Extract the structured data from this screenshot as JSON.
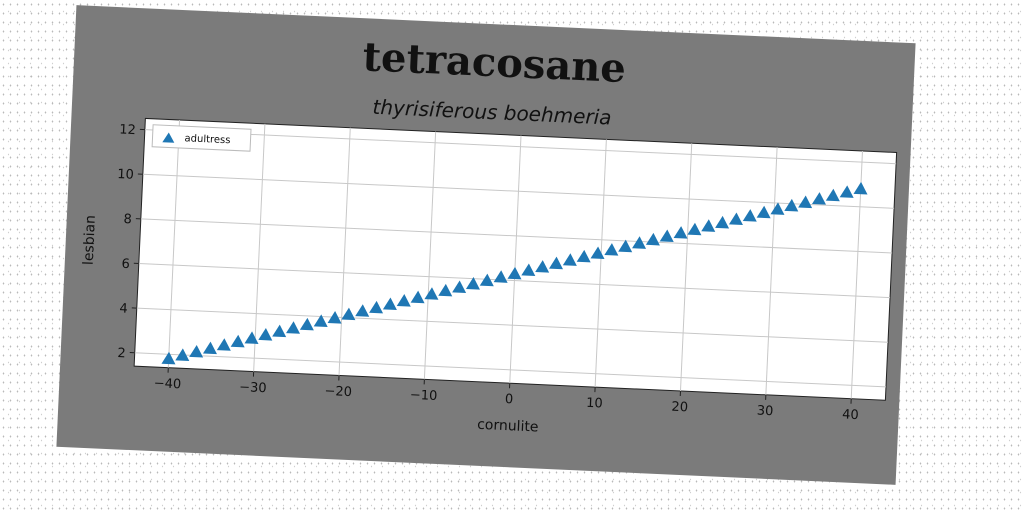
{
  "chart_data": {
    "type": "scatter",
    "title": "tetracosane",
    "subtitle": "thyrisiferous boehmeria",
    "xlabel": "cornulite",
    "ylabel": "lesbian",
    "xlim": [
      -44,
      44
    ],
    "ylim": [
      1.4,
      12.5
    ],
    "xticks": [
      -40,
      -30,
      -20,
      -10,
      0,
      10,
      20,
      30,
      40
    ],
    "yticks": [
      2,
      4,
      6,
      8,
      10,
      12
    ],
    "grid": true,
    "legend_position": "top-left",
    "series": [
      {
        "name": "adultress",
        "marker": "triangle-up",
        "color": "#1f77b4",
        "x": [
          -40.0,
          -38.4,
          -36.8,
          -35.2,
          -33.6,
          -32.0,
          -30.4,
          -28.8,
          -27.2,
          -25.6,
          -24.0,
          -22.4,
          -20.8,
          -19.2,
          -17.6,
          -16.0,
          -14.4,
          -12.8,
          -11.2,
          -9.6,
          -8.0,
          -6.4,
          -4.8,
          -3.2,
          -1.6,
          0.0,
          1.6,
          3.2,
          4.8,
          6.4,
          8.0,
          9.6,
          11.2,
          12.8,
          14.4,
          16.0,
          17.6,
          19.2,
          20.8,
          22.4,
          24.0,
          25.6,
          27.2,
          28.8,
          30.4,
          32.0,
          33.6,
          35.2,
          36.8,
          38.4,
          40.0
        ],
        "y": [
          1.8,
          1.98,
          2.16,
          2.34,
          2.52,
          2.7,
          2.88,
          3.06,
          3.24,
          3.42,
          3.6,
          3.78,
          3.96,
          4.14,
          4.32,
          4.5,
          4.68,
          4.86,
          5.04,
          5.22,
          5.4,
          5.58,
          5.76,
          5.94,
          6.12,
          6.3,
          6.48,
          6.66,
          6.84,
          7.02,
          7.2,
          7.38,
          7.56,
          7.74,
          7.92,
          8.1,
          8.28,
          8.46,
          8.64,
          8.82,
          9.0,
          9.18,
          9.36,
          9.54,
          9.72,
          9.9,
          10.08,
          10.26,
          10.44,
          10.62,
          10.8
        ]
      }
    ]
  }
}
